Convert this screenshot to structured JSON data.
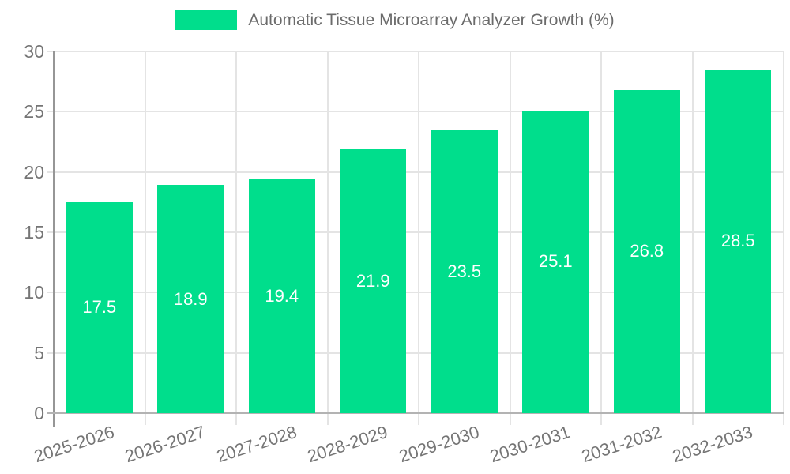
{
  "legend": {
    "label": "Automatic Tissue Microarray Analyzer Growth (%)"
  },
  "chart_data": {
    "type": "bar",
    "title": "Automatic Tissue Microarray Analyzer Growth (%)",
    "categories": [
      "2025-2026",
      "2026-2027",
      "2027-2028",
      "2028-2029",
      "2029-2030",
      "2030-2031",
      "2031-2032",
      "2032-2033"
    ],
    "values": [
      17.5,
      18.9,
      19.4,
      21.9,
      23.5,
      25.1,
      26.8,
      28.5
    ],
    "value_labels": [
      "17.5",
      "18.9",
      "19.4",
      "21.9",
      "23.5",
      "25.1",
      "26.8",
      "28.5"
    ],
    "xlabel": "",
    "ylabel": "",
    "ylim": [
      0,
      30
    ],
    "yticks": [
      0,
      5,
      10,
      15,
      20,
      25,
      30
    ],
    "grid": true,
    "legend_position": "top-center",
    "bar_color": "#00DE8C",
    "value_label_color": "#ffffff",
    "grid_color": "#e4e4e4",
    "y_axis_color": "#969696",
    "x_axis_color": "#b3b3b3",
    "tick_text_color": "#757575",
    "legend_text_color": "#6b6b6b"
  }
}
